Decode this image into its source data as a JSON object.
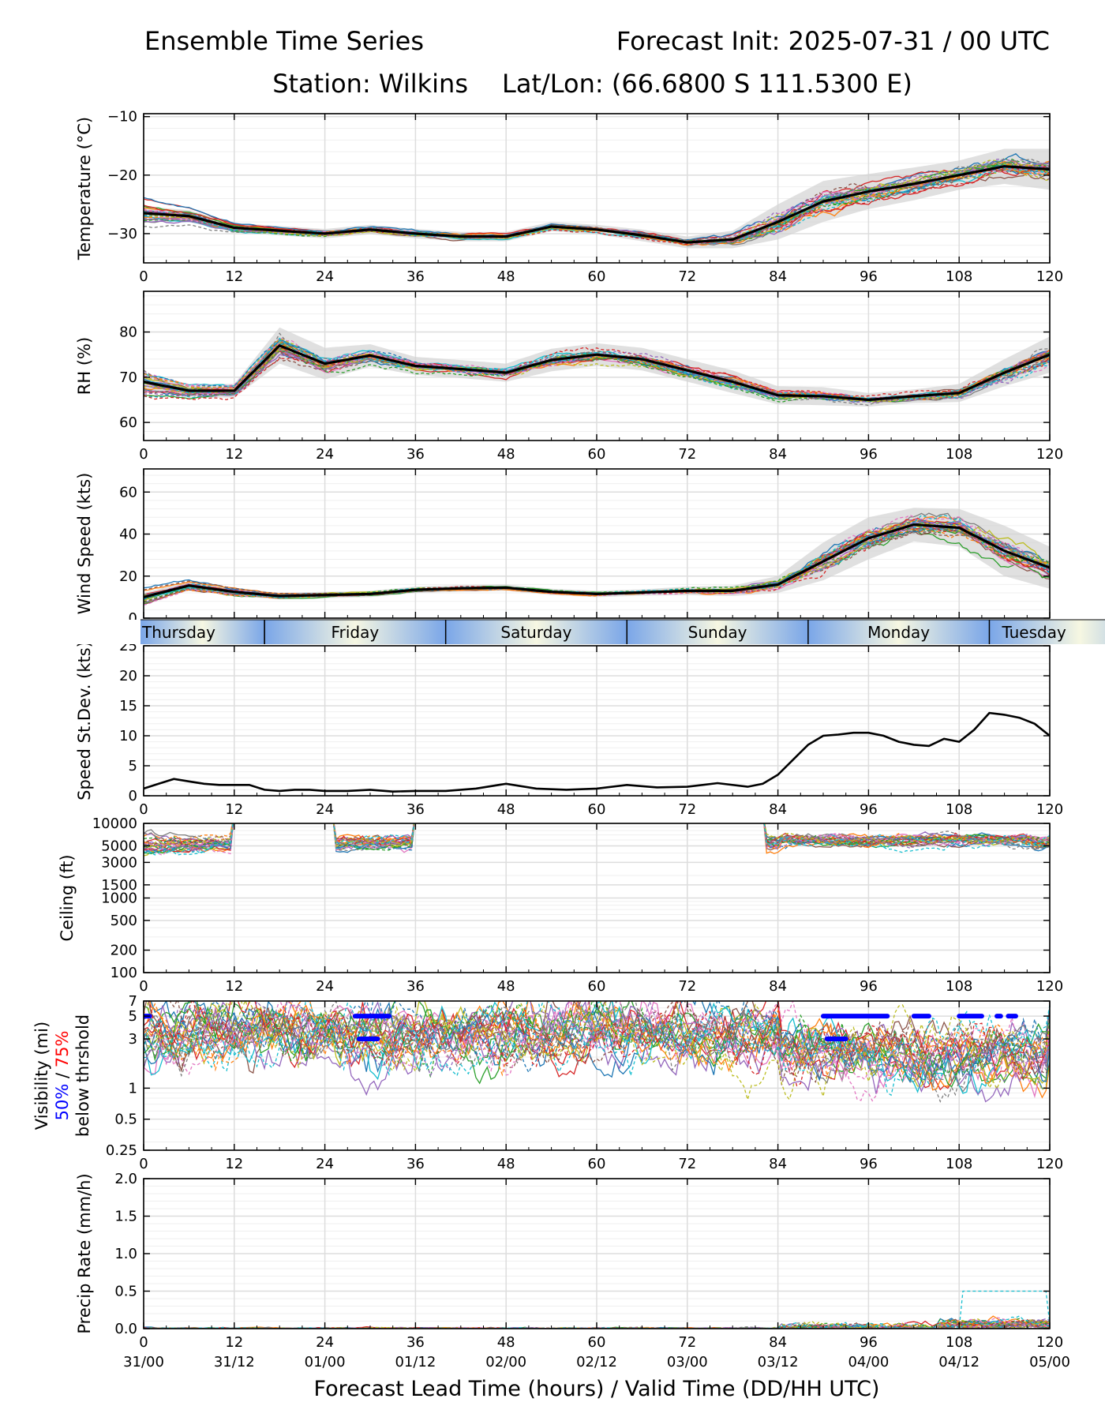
{
  "header": {
    "title": "Ensemble Time Series",
    "init": "Forecast Init: 2025-07-31 / 00 UTC",
    "station": "Station: Wilkins",
    "latlon": "Lat/Lon: (66.6800 S 111.5300 E)"
  },
  "days": [
    "Thursday",
    "Friday",
    "Saturday",
    "Sunday",
    "Monday",
    "Tuesday"
  ],
  "xlabel": "Forecast Lead Time (hours) / Valid Time (DD/HH UTC)",
  "colors": {
    "mean": "#000000",
    "spread": "#d3d3d3",
    "vis50": "#0000ff",
    "vis75": "#ff0000",
    "members": [
      "#1f77b4",
      "#ff7f0e",
      "#2ca02c",
      "#d62728",
      "#9467bd",
      "#8c564b",
      "#e377c2",
      "#7f7f7f",
      "#bcbd22",
      "#17becf"
    ]
  },
  "chart_data": [
    {
      "id": "temperature",
      "type": "line",
      "ylabel": "Temperature (°C)",
      "ylim": [
        -35,
        -9.5
      ],
      "yticks": [
        -30,
        -20,
        -10
      ],
      "ytick_labels": [
        "−30",
        "−20",
        "−10"
      ],
      "xlim": [
        0,
        120
      ],
      "xticks": [
        0,
        12,
        24,
        36,
        48,
        60,
        72,
        84,
        96,
        108,
        120
      ],
      "x": [
        0,
        6,
        12,
        18,
        24,
        30,
        36,
        42,
        48,
        54,
        60,
        66,
        72,
        78,
        84,
        90,
        96,
        102,
        108,
        114,
        120
      ],
      "mean": [
        -26.5,
        -27,
        -29,
        -29.5,
        -30,
        -29.3,
        -30,
        -30.5,
        -30.5,
        -28.8,
        -29.3,
        -30.3,
        -31.5,
        -31,
        -28,
        -24.5,
        -22.8,
        -21.5,
        -20,
        -18.5,
        -19
      ],
      "spread": [
        1.2,
        1.0,
        0.8,
        0.8,
        0.8,
        0.8,
        0.8,
        0.8,
        0.8,
        0.8,
        0.8,
        1.0,
        1.0,
        1.5,
        3.0,
        3.5,
        3.0,
        2.8,
        2.5,
        3.0,
        3.5
      ],
      "member_count": 30,
      "grid": true
    },
    {
      "id": "rh",
      "type": "line",
      "ylabel": "RH (%)",
      "ylim": [
        56,
        89
      ],
      "yticks": [
        60,
        70,
        80
      ],
      "xlim": [
        0,
        120
      ],
      "xticks": [
        0,
        12,
        24,
        36,
        48,
        60,
        72,
        84,
        96,
        108,
        120
      ],
      "x": [
        0,
        6,
        12,
        18,
        24,
        30,
        36,
        42,
        48,
        54,
        60,
        66,
        72,
        78,
        84,
        90,
        96,
        102,
        108,
        114,
        120
      ],
      "mean": [
        69,
        67,
        67,
        77,
        73,
        74.8,
        72.5,
        71.8,
        71,
        73.8,
        75,
        74,
        71.5,
        69,
        66,
        65.8,
        65,
        65.8,
        66.5,
        71,
        75
      ],
      "spread": [
        2.0,
        1.5,
        1.5,
        4.0,
        3.5,
        2.5,
        2.0,
        2.0,
        2.0,
        2.5,
        2.5,
        2.5,
        2.5,
        2.5,
        2.0,
        2.0,
        1.5,
        1.5,
        2.0,
        3.0,
        4.0
      ],
      "member_count": 30,
      "grid": true
    },
    {
      "id": "wind_speed",
      "type": "line",
      "ylabel": "Wind Speed (kts)",
      "ylim": [
        0,
        71
      ],
      "yticks": [
        0,
        20,
        40,
        60
      ],
      "xlim": [
        0,
        120
      ],
      "xticks": [
        0,
        12,
        24,
        36,
        48,
        60,
        72,
        84,
        96,
        108,
        120
      ],
      "x": [
        0,
        6,
        12,
        18,
        24,
        30,
        36,
        42,
        48,
        54,
        60,
        66,
        72,
        78,
        84,
        90,
        96,
        102,
        108,
        114,
        120
      ],
      "mean": [
        10,
        15.5,
        12.5,
        10.5,
        11,
        11.5,
        13.5,
        14.2,
        14.5,
        12.5,
        11.5,
        12.2,
        13,
        13,
        16,
        27,
        38,
        44.5,
        43,
        32,
        24
      ],
      "spread": [
        2.0,
        2.0,
        2.0,
        1.5,
        1.5,
        1.5,
        1.5,
        1.5,
        1.5,
        1.5,
        1.5,
        1.5,
        2.0,
        2.5,
        4.0,
        9.0,
        10.0,
        8.0,
        9.0,
        12.0,
        10.0
      ],
      "member_count": 30,
      "grid": true
    },
    {
      "id": "speed_stdev",
      "type": "line",
      "ylabel": "Speed St.Dev. (kts)",
      "ylim": [
        0,
        25
      ],
      "yticks": [
        0,
        5,
        10,
        15,
        20,
        25
      ],
      "xlim": [
        0,
        120
      ],
      "xticks": [
        0,
        12,
        24,
        36,
        48,
        60,
        72,
        84,
        96,
        108,
        120
      ],
      "x": [
        0,
        2,
        4,
        6,
        8,
        10,
        12,
        14,
        16,
        18,
        20,
        22,
        24,
        27,
        30,
        33,
        36,
        40,
        44,
        48,
        52,
        56,
        60,
        64,
        68,
        72,
        76,
        80,
        82,
        84,
        86,
        88,
        90,
        92,
        94,
        96,
        98,
        100,
        102,
        104,
        106,
        108,
        110,
        112,
        114,
        116,
        118,
        120
      ],
      "values": [
        1.2,
        2.0,
        2.8,
        2.4,
        2.0,
        1.8,
        1.8,
        1.8,
        1.0,
        0.8,
        1.0,
        1.0,
        0.8,
        0.8,
        1.0,
        0.7,
        0.8,
        0.8,
        1.2,
        2.0,
        1.2,
        1.0,
        1.2,
        1.8,
        1.4,
        1.5,
        2.1,
        1.5,
        2.0,
        3.5,
        6.0,
        8.5,
        10.0,
        10.2,
        10.5,
        10.5,
        10.0,
        9.0,
        8.5,
        8.3,
        9.5,
        9.0,
        11.0,
        13.8,
        13.5,
        13.0,
        12.0,
        10.0
      ],
      "grid": true
    },
    {
      "id": "ceiling",
      "type": "line",
      "ylabel": "Ceiling (ft)",
      "yscale": "log",
      "ylim": [
        100,
        10000
      ],
      "yticks": [
        100,
        200,
        500,
        1000,
        1500,
        3000,
        5000,
        10000
      ],
      "xlim": [
        0,
        120
      ],
      "xticks": [
        0,
        12,
        24,
        36,
        48,
        60,
        72,
        84,
        96,
        108,
        120
      ],
      "member_count": 30,
      "grid": true
    },
    {
      "id": "visibility",
      "type": "line",
      "ylabel": "Visibility (mi)",
      "ylabel_50": "50%",
      "ylabel_sep": " / ",
      "ylabel_75": "75%",
      "ylabel_suffix": "below thrshold",
      "yscale": "log",
      "ylim": [
        0.25,
        7
      ],
      "yticks": [
        0.25,
        0.5,
        1,
        3,
        5,
        7
      ],
      "xlim": [
        0,
        120
      ],
      "xticks": [
        0,
        12,
        24,
        36,
        48,
        60,
        72,
        84,
        96,
        108,
        120
      ],
      "threshold_50": [
        {
          "y": 5,
          "x0": 0,
          "x1": 0.8
        },
        {
          "y": 5,
          "x0": 28,
          "x1": 32.5
        },
        {
          "y": 3,
          "x0": 28.5,
          "x1": 31
        },
        {
          "y": 5,
          "x0": 90,
          "x1": 98.5
        },
        {
          "y": 3,
          "x0": 90.5,
          "x1": 93
        },
        {
          "y": 5,
          "x0": 102,
          "x1": 104
        },
        {
          "y": 5,
          "x0": 108,
          "x1": 111
        },
        {
          "y": 5,
          "x0": 113,
          "x1": 113.5
        },
        {
          "y": 5,
          "x0": 114.5,
          "x1": 115.5
        }
      ],
      "member_count": 30,
      "grid": true
    },
    {
      "id": "precip_rate",
      "type": "line",
      "ylabel": "Precip Rate (mm/h)",
      "ylim": [
        0,
        2.0
      ],
      "yticks": [
        0.0,
        0.5,
        1.0,
        1.5,
        2.0
      ],
      "ytick_labels": [
        "0.0",
        "0.5",
        "1.0",
        "1.5",
        "2.0"
      ],
      "xlim": [
        0,
        120
      ],
      "xticks": [
        0,
        12,
        24,
        36,
        48,
        60,
        72,
        84,
        96,
        108,
        120
      ],
      "xtick_dates": [
        "31/00",
        "31/12",
        "01/00",
        "01/12",
        "02/00",
        "02/12",
        "03/00",
        "03/12",
        "04/00",
        "04/12",
        "05/00"
      ],
      "member_count": 30,
      "grid": true
    }
  ]
}
